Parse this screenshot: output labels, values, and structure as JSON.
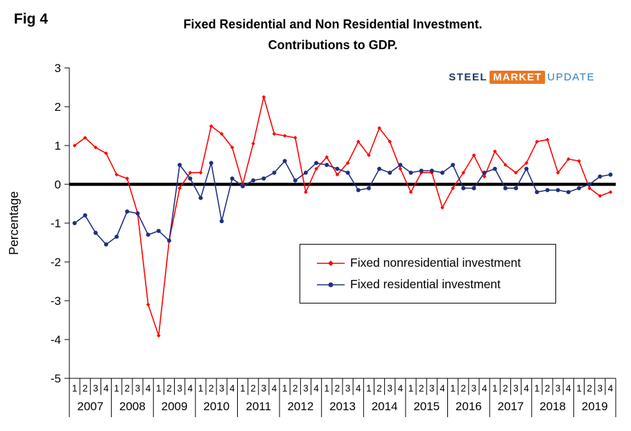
{
  "fig_label": "Fig 4",
  "title": {
    "line1": "Fixed Residential and Non Residential Investment.",
    "line2": "Contributions to GDP."
  },
  "logo": {
    "steel": "STEEL",
    "market": "MARKET",
    "update": "UPDATE"
  },
  "chart_data": {
    "type": "line",
    "title": "Fixed Residential and Non Residential Investment. Contributions to GDP.",
    "xlabel": "",
    "ylabel": "Percentage",
    "ylim": [
      -5,
      3
    ],
    "yticks": [
      3,
      2,
      1,
      0,
      -1,
      -2,
      -3,
      -4,
      -5
    ],
    "grid": false,
    "zero_line": true,
    "legend_position": "inside-right",
    "quarter_labels": [
      "1",
      "2",
      "3",
      "4"
    ],
    "years": [
      "2007",
      "2008",
      "2009",
      "2010",
      "2011",
      "2012",
      "2013",
      "2014",
      "2015",
      "2016",
      "2017",
      "2018",
      "2019"
    ],
    "series": [
      {
        "name": "Fixed nonresidential investment",
        "color": "#ff0000",
        "marker": "diamond",
        "values": [
          1.0,
          1.2,
          0.95,
          0.8,
          0.25,
          0.15,
          -0.75,
          -3.1,
          -3.9,
          -1.45,
          -0.1,
          0.3,
          0.3,
          1.5,
          1.3,
          0.95,
          0.0,
          1.05,
          2.25,
          1.3,
          1.25,
          1.2,
          -0.2,
          0.4,
          0.7,
          0.25,
          0.55,
          1.1,
          0.75,
          1.45,
          1.1,
          0.4,
          -0.2,
          0.3,
          0.3,
          -0.6,
          -0.1,
          0.3,
          0.75,
          0.2,
          0.85,
          0.5,
          0.3,
          0.55,
          1.1,
          1.15,
          0.3,
          0.65,
          0.6,
          -0.1,
          -0.3,
          -0.2
        ]
      },
      {
        "name": "Fixed residential investment",
        "color": "#20307f",
        "marker": "circle",
        "values": [
          -1.0,
          -0.8,
          -1.25,
          -1.55,
          -1.35,
          -0.7,
          -0.75,
          -1.3,
          -1.2,
          -1.45,
          0.5,
          0.15,
          -0.35,
          0.55,
          -0.95,
          0.15,
          -0.05,
          0.1,
          0.15,
          0.3,
          0.6,
          0.1,
          0.3,
          0.55,
          0.5,
          0.4,
          0.3,
          -0.15,
          -0.1,
          0.4,
          0.3,
          0.5,
          0.3,
          0.35,
          0.35,
          0.3,
          0.5,
          -0.1,
          -0.1,
          0.3,
          0.4,
          -0.1,
          -0.1,
          0.4,
          -0.2,
          -0.15,
          -0.15,
          -0.2,
          -0.1,
          0.0,
          0.2,
          0.25
        ]
      }
    ]
  }
}
